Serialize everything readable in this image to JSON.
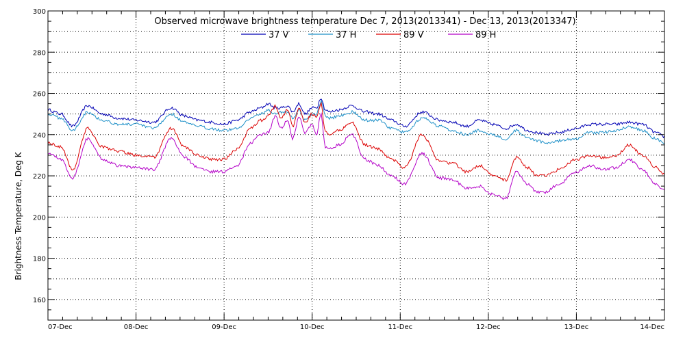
{
  "chart_data": {
    "type": "line",
    "title": "Observed microwave brightness temperature Dec  7, 2013(2013341) - Dec 13, 2013(2013347)",
    "xlabel": "",
    "ylabel": "Brightness Temperature, Deg K",
    "xlim": [
      0,
      7
    ],
    "ylim": [
      150,
      300
    ],
    "grid": true,
    "legend_position": "top-center",
    "x_tick_labels": [
      "07-Dec",
      "08-Dec",
      "09-Dec",
      "10-Dec",
      "11-Dec",
      "12-Dec",
      "13-Dec",
      "14-Dec"
    ],
    "x_tick_values": [
      0,
      1,
      2,
      3,
      4,
      5,
      6,
      7
    ],
    "y_tick_labels": [
      "160",
      "180",
      "200",
      "220",
      "240",
      "260",
      "280",
      "300"
    ],
    "y_tick_values": [
      160,
      180,
      200,
      220,
      240,
      260,
      280,
      300
    ],
    "x": [
      0.0,
      0.15,
      0.28,
      0.45,
      0.62,
      0.8,
      1.0,
      1.2,
      1.4,
      1.55,
      1.7,
      1.85,
      2.0,
      2.15,
      2.3,
      2.42,
      2.5,
      2.58,
      2.65,
      2.72,
      2.78,
      2.85,
      2.92,
      3.0,
      3.05,
      3.1,
      3.15,
      3.2,
      3.3,
      3.45,
      3.6,
      3.75,
      3.9,
      4.05,
      4.25,
      4.45,
      4.6,
      4.75,
      4.9,
      5.05,
      5.2,
      5.32,
      5.45,
      5.55,
      5.65,
      5.8,
      6.0,
      6.15,
      6.3,
      6.45,
      6.6,
      6.75,
      6.9,
      7.0
    ],
    "series": [
      {
        "name": "37 V",
        "color": "#0000b4",
        "values": [
          252,
          250,
          244,
          254,
          250,
          248,
          247,
          246,
          253,
          249,
          247,
          246,
          245,
          247,
          251,
          253,
          255,
          253,
          253,
          254,
          251,
          255,
          250,
          253,
          253,
          258,
          252,
          251,
          252,
          254,
          251,
          250,
          247,
          244,
          251,
          247,
          246,
          244,
          247,
          245,
          243,
          245,
          242,
          241,
          240,
          241,
          243,
          245,
          245,
          245,
          246,
          245,
          241,
          239
        ]
      },
      {
        "name": "37 H",
        "color": "#1e90c8",
        "values": [
          250,
          248,
          242,
          251,
          247,
          245,
          245,
          243,
          250,
          246,
          244,
          243,
          242,
          243,
          248,
          250,
          252,
          250,
          251,
          251,
          248,
          252,
          247,
          250,
          250,
          256,
          249,
          248,
          249,
          251,
          247,
          247,
          243,
          241,
          248,
          244,
          242,
          240,
          242,
          240,
          238,
          242,
          238,
          237,
          236,
          237,
          238,
          241,
          241,
          242,
          244,
          242,
          238,
          236
        ]
      },
      {
        "name": "89 V",
        "color": "#dc0000",
        "values": [
          236,
          234,
          223,
          243,
          234,
          232,
          230,
          229,
          243,
          234,
          230,
          228,
          228,
          233,
          243,
          247,
          249,
          254,
          248,
          252,
          244,
          253,
          246,
          250,
          248,
          255,
          241,
          240,
          242,
          246,
          235,
          233,
          228,
          224,
          240,
          227,
          226,
          222,
          225,
          220,
          218,
          229,
          224,
          220,
          220,
          223,
          228,
          230,
          229,
          230,
          235,
          230,
          224,
          221
        ]
      },
      {
        "name": "89 H",
        "color": "#b400c8",
        "values": [
          231,
          228,
          219,
          238,
          228,
          225,
          224,
          223,
          238,
          229,
          224,
          222,
          222,
          225,
          236,
          240,
          241,
          249,
          243,
          247,
          238,
          249,
          241,
          245,
          240,
          250,
          234,
          233,
          235,
          240,
          228,
          225,
          220,
          216,
          231,
          219,
          218,
          214,
          215,
          211,
          209,
          222,
          216,
          212,
          212,
          216,
          222,
          225,
          223,
          224,
          228,
          223,
          216,
          213
        ]
      }
    ]
  }
}
